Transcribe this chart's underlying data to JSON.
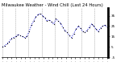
{
  "title": "Milwaukee Weather - Wind Chill (Last 24 Hours)",
  "y_values": [
    5,
    6,
    8,
    10,
    13,
    14,
    15,
    17,
    16,
    15,
    14,
    15,
    20,
    26,
    30,
    34,
    36,
    37,
    35,
    33,
    30,
    31,
    29,
    27,
    32,
    30,
    28,
    24,
    21,
    19,
    16,
    14,
    18,
    22,
    25,
    23,
    20,
    19,
    21,
    24,
    27,
    25,
    22,
    20,
    23,
    25,
    26,
    24
  ],
  "line_color": "#0000cc",
  "bg_color": "#ffffff",
  "plot_bg": "#ffffff",
  "ylim": [
    -5,
    42
  ],
  "yticks": [
    35,
    25,
    15,
    5,
    -5
  ],
  "ytick_labels": [
    "35",
    "25",
    "15",
    "5",
    "-5"
  ],
  "grid_color": "#888888",
  "title_fontsize": 3.8,
  "tick_fontsize": 3.2,
  "marker_size": 1.2,
  "line_width": 0.7,
  "num_vgrid": 9,
  "border_color": "#000000"
}
